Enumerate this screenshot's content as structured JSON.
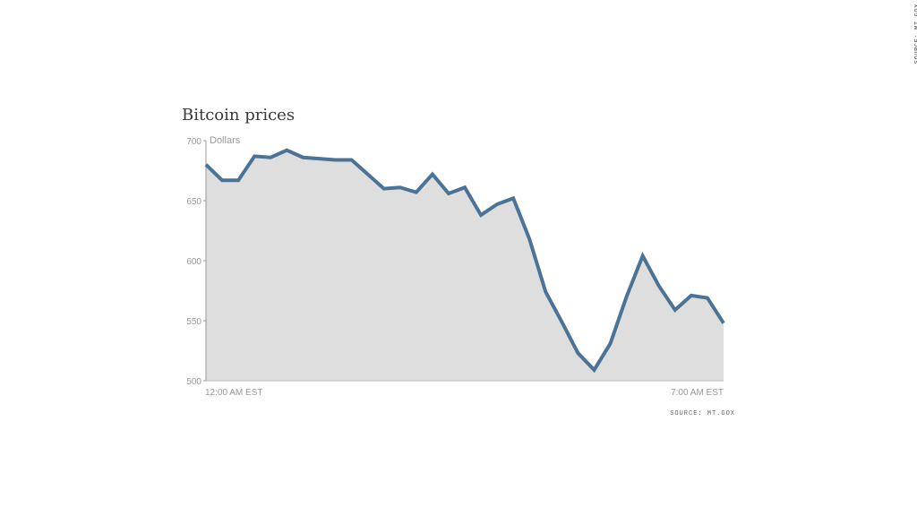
{
  "chart_data": {
    "type": "area",
    "title": "Bitcoin prices",
    "ylabel": "Dollars",
    "ylim": [
      500,
      700
    ],
    "yticks": [
      700,
      650,
      600,
      550,
      500
    ],
    "x_start_label": "12:00 AM EST",
    "x_end_label": "7:00 AM EST",
    "grid": false,
    "series": [
      {
        "values": [
          680,
          667,
          667,
          687,
          686,
          692,
          686,
          685,
          684,
          684,
          672,
          660,
          661,
          657,
          672,
          656,
          661,
          638,
          647,
          652,
          618,
          574,
          549,
          523,
          509,
          531,
          570,
          604,
          579,
          559,
          571,
          569,
          548
        ],
        "line_color": "#4a7396",
        "fill_color": "#dedede"
      }
    ],
    "source": "SOURCE: MT.GOX"
  }
}
